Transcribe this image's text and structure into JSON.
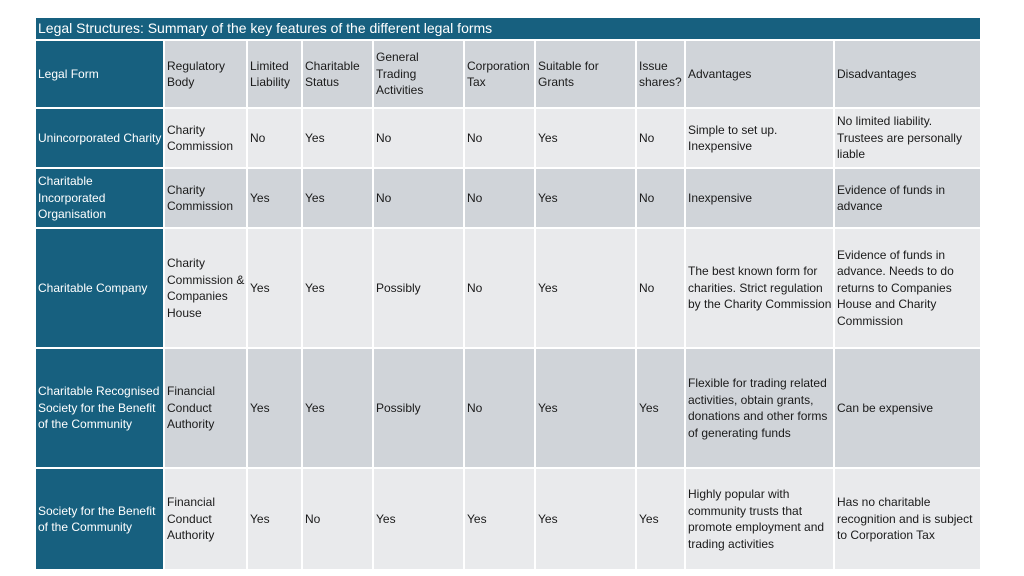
{
  "title": "Legal Structures: Summary of the key features of the different legal forms",
  "headers": [
    "Legal Form",
    "Regulatory Body",
    "Limited Liability",
    "Charitable Status",
    "General Trading Activities",
    "Corporation Tax",
    "Suitable for Grants",
    "Issue shares?",
    "Advantages",
    "Disadvantages"
  ],
  "rows": [
    {
      "form": "Unincorporated Charity",
      "regulator": "Charity Commission",
      "limited_liability": "No",
      "charitable_status": "Yes",
      "trading": "No",
      "corp_tax": "No",
      "grants": "Yes",
      "shares": "No",
      "advantages": "Simple to set up. Inexpensive",
      "disadvantages": "No limited liability. Trustees are personally liable"
    },
    {
      "form": "Charitable Incorporated Organisation",
      "regulator": "Charity Commission",
      "limited_liability": "Yes",
      "charitable_status": "Yes",
      "trading": "No",
      "corp_tax": "No",
      "grants": "Yes",
      "shares": "No",
      "advantages": "Inexpensive",
      "disadvantages": "Evidence of funds in advance"
    },
    {
      "form": "Charitable Company",
      "regulator": "Charity Commission & Companies House",
      "limited_liability": "Yes",
      "charitable_status": "Yes",
      "trading": "Possibly",
      "corp_tax": "No",
      "grants": "Yes",
      "shares": "No",
      "advantages": "The best known form for charities. Strict regulation by the Charity Commission",
      "disadvantages": "Evidence of funds in advance. Needs to do returns to Companies House and Charity Commission"
    },
    {
      "form": "Charitable Recognised Society for the Benefit of the Community",
      "regulator": "Financial Conduct Authority",
      "limited_liability": "Yes",
      "charitable_status": "Yes",
      "trading": "Possibly",
      "corp_tax": "No",
      "grants": "Yes",
      "shares": "Yes",
      "advantages": "Flexible for trading related activities, obtain grants, donations and other forms of generating funds",
      "disadvantages": "Can be expensive"
    },
    {
      "form": "Society for the Benefit of the Community",
      "regulator": "Financial Conduct Authority",
      "limited_liability": "Yes",
      "charitable_status": "No",
      "trading": "Yes",
      "corp_tax": "Yes",
      "grants": "Yes",
      "shares": "Yes",
      "advantages": "Highly popular with community trusts that promote employment and trading activities",
      "disadvantages": "Has no charitable recognition and is subject to Corporation Tax"
    }
  ]
}
